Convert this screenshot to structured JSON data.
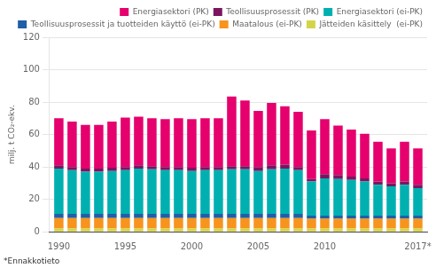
{
  "chart_data": {
    "type": "bar",
    "stacked": true,
    "ylabel": "milj. t CO₂-ekv.",
    "annotations": [
      "*Ennakkotieto"
    ],
    "x": [
      1990,
      1991,
      1992,
      1993,
      1994,
      1995,
      1996,
      1997,
      1998,
      1999,
      2000,
      2001,
      2002,
      2003,
      2004,
      2005,
      2006,
      2007,
      2008,
      2009,
      2010,
      2011,
      2012,
      2013,
      2014,
      2015,
      2016,
      2017
    ],
    "xlim": [
      1989.3,
      2017.7
    ],
    "xticks": [
      1990,
      1995,
      2000,
      2005,
      2010,
      {
        "value": 2017,
        "label": "2017*"
      }
    ],
    "ylim": [
      0,
      120
    ],
    "yticks": [
      0,
      20,
      40,
      60,
      80,
      100,
      120
    ],
    "grid": true,
    "legend": "upper right",
    "series": [
      {
        "name": "Jätteiden käsittely  (ei-PK)",
        "color": "#d4d44a",
        "values": [
          2.0,
          2.0,
          2.0,
          2.0,
          2.0,
          2.0,
          2.0,
          2.0,
          2.0,
          2.0,
          2.0,
          2.0,
          2.0,
          2.0,
          2.0,
          2.0,
          2.0,
          2.0,
          2.0,
          2.0,
          2.0,
          2.0,
          2.0,
          2.0,
          2.0,
          2.0,
          2.0,
          2.0
        ]
      },
      {
        "name": "Maatalous (ei-PK)",
        "color": "#f7941d",
        "values": [
          6.5,
          6.5,
          6.5,
          6.5,
          6.5,
          6.5,
          6.5,
          6.5,
          6.5,
          6.5,
          6.5,
          6.5,
          6.5,
          6.5,
          6.5,
          6.5,
          6.5,
          6.5,
          6.5,
          6.0,
          6.0,
          6.0,
          6.0,
          6.0,
          6.0,
          6.0,
          6.0,
          6.0
        ]
      },
      {
        "name": "Teollisuusprosessit ja tuotteiden käyttö (ei-PK)",
        "color": "#1f5fa6",
        "values": [
          2.5,
          2.5,
          2.5,
          2.5,
          2.5,
          2.5,
          2.5,
          2.5,
          2.5,
          2.5,
          2.5,
          2.5,
          2.5,
          2.5,
          2.5,
          2.5,
          2.5,
          2.5,
          2.5,
          2.0,
          2.0,
          2.0,
          2.0,
          2.0,
          2.0,
          2.0,
          2.0,
          2.0
        ]
      },
      {
        "name": "Energiasektori (ei-PK)",
        "color": "#00b0b0",
        "values": [
          28.0,
          27.0,
          26.0,
          26.0,
          26.5,
          27.0,
          28.0,
          27.5,
          27.0,
          27.0,
          26.5,
          27.0,
          27.0,
          27.5,
          27.5,
          26.5,
          27.5,
          28.0,
          27.0,
          21.0,
          23.0,
          22.5,
          22.0,
          21.0,
          19.0,
          18.0,
          19.0,
          17.0
        ]
      },
      {
        "name": "Teollisuusprosessit (PK)",
        "color": "#7b1560",
        "values": [
          2.0,
          2.0,
          2.0,
          2.0,
          2.0,
          2.0,
          2.0,
          2.0,
          2.0,
          2.0,
          2.0,
          2.0,
          2.0,
          2.0,
          2.0,
          2.5,
          2.5,
          2.5,
          2.0,
          1.5,
          2.5,
          2.5,
          2.0,
          2.0,
          2.0,
          2.0,
          2.0,
          2.0
        ]
      },
      {
        "name": "Energiasektori (PK)",
        "color": "#e5006e",
        "values": [
          29.0,
          28.0,
          27.0,
          27.0,
          28.5,
          30.5,
          30.0,
          29.5,
          29.5,
          30.0,
          30.0,
          30.0,
          30.0,
          43.0,
          40.5,
          34.5,
          38.5,
          36.0,
          34.0,
          30.0,
          34.0,
          30.5,
          29.0,
          27.5,
          24.5,
          21.5,
          24.5,
          22.5
        ]
      }
    ]
  }
}
